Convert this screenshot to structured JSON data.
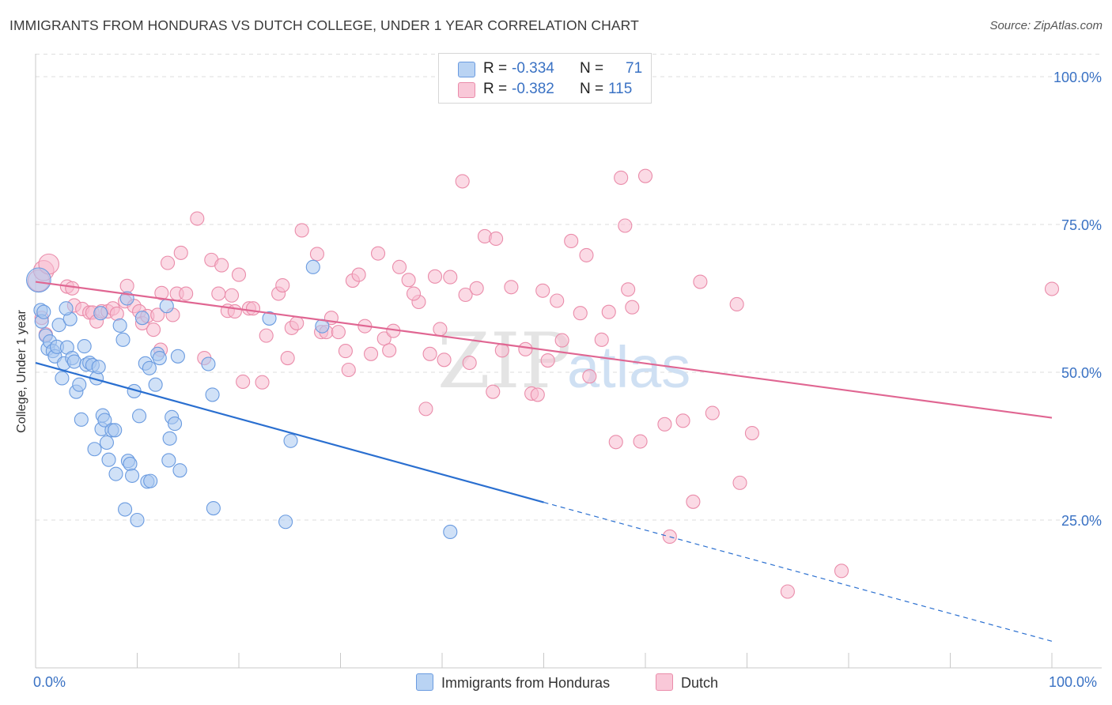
{
  "header": {
    "title": "IMMIGRANTS FROM HONDURAS VS DUTCH COLLEGE, UNDER 1 YEAR CORRELATION CHART",
    "source": "Source: ZipAtlas.com"
  },
  "legend": {
    "rows": [
      {
        "r_label": "R = ",
        "r_value": "-0.334",
        "n_label": "N = ",
        "n_value": "71"
      },
      {
        "r_label": "R = ",
        "r_value": "-0.382",
        "n_label": "N = ",
        "n_value": "115"
      }
    ]
  },
  "watermark": {
    "zip": "ZIP",
    "atlas": "atlas"
  },
  "colors": {
    "blue_fill": "#a9c8f0",
    "blue_stroke": "#6a9be0",
    "blue_line": "#2a6fd0",
    "pink_fill": "#f7bcd0",
    "pink_stroke": "#ea8caa",
    "pink_line": "#e06692",
    "tick_text": "#3a72c4",
    "grid": "#dddddd"
  },
  "chart_data": {
    "type": "scatter",
    "title": "IMMIGRANTS FROM HONDURAS VS DUTCH COLLEGE, UNDER 1 YEAR CORRELATION CHART",
    "xlabel": "",
    "ylabel": "College, Under 1 year",
    "xlim": [
      0,
      100
    ],
    "ylim": [
      0,
      106
    ],
    "x_tick_labels": [
      "0.0%",
      "100.0%"
    ],
    "y_ticks": [
      25,
      50,
      75,
      100
    ],
    "y_tick_labels": [
      "25.0%",
      "50.0%",
      "75.0%",
      "100.0%"
    ],
    "grid": true,
    "legend_position": "bottom-center",
    "series": [
      {
        "name": "Immigrants from Honduras",
        "R": -0.334,
        "N": 71,
        "trend": {
          "x0": 0,
          "y0": 51.6,
          "x1": 50,
          "y1": 28.0,
          "dashed_to_x": 100,
          "dashed_to_y": 4.5
        },
        "points": [
          [
            0.3,
            65.6,
            1.8
          ],
          [
            0.5,
            60.5,
            1
          ],
          [
            0.6,
            58.6,
            1
          ],
          [
            0.8,
            60.2,
            1
          ],
          [
            1,
            56.2,
            1
          ],
          [
            1.2,
            54,
            1
          ],
          [
            1.4,
            55.2,
            1
          ],
          [
            1.7,
            53.6,
            1
          ],
          [
            1.9,
            52.7,
            1
          ],
          [
            2.1,
            54.3,
            1
          ],
          [
            2.3,
            58,
            1
          ],
          [
            2.6,
            49,
            1
          ],
          [
            2.8,
            51.5,
            1
          ],
          [
            3.1,
            54.2,
            1
          ],
          [
            3.4,
            59,
            1
          ],
          [
            3.6,
            52.4,
            1
          ],
          [
            3.8,
            51.8,
            1
          ],
          [
            4,
            46.7,
            1
          ],
          [
            4.3,
            47.9,
            1
          ],
          [
            4.5,
            42,
            1
          ],
          [
            4.8,
            54.4,
            1
          ],
          [
            5,
            51.3,
            1
          ],
          [
            5.3,
            51.6,
            1
          ],
          [
            5.6,
            51.2,
            1
          ],
          [
            5.8,
            37,
            1
          ],
          [
            6,
            49,
            1
          ],
          [
            6.2,
            50.9,
            1
          ],
          [
            6.5,
            40.4,
            1
          ],
          [
            6.6,
            42.7,
            1
          ],
          [
            6.8,
            41.9,
            1
          ],
          [
            7,
            38.1,
            1
          ],
          [
            7.2,
            35.2,
            1
          ],
          [
            7.5,
            40.2,
            1
          ],
          [
            7.8,
            40.2,
            1
          ],
          [
            7.9,
            32.8,
            1
          ],
          [
            8.3,
            57.9,
            1
          ],
          [
            8.6,
            55.5,
            1
          ],
          [
            8.8,
            26.8,
            1
          ],
          [
            9,
            62.5,
            1
          ],
          [
            9.1,
            35,
            1
          ],
          [
            9.3,
            34.5,
            1
          ],
          [
            9.5,
            32.5,
            1
          ],
          [
            9.7,
            46.8,
            1
          ],
          [
            10,
            25,
            1
          ],
          [
            10.2,
            42.6,
            1
          ],
          [
            10.5,
            59.2,
            1
          ],
          [
            10.8,
            51.5,
            1
          ],
          [
            11,
            31.5,
            1
          ],
          [
            11.3,
            31.6,
            1
          ],
          [
            11.2,
            50.7,
            1
          ],
          [
            11.8,
            47.9,
            1
          ],
          [
            12,
            53.1,
            1
          ],
          [
            12.2,
            52.4,
            1
          ],
          [
            12.9,
            61.2,
            1
          ],
          [
            13.1,
            35.1,
            1
          ],
          [
            13.4,
            42.4,
            1
          ],
          [
            13.7,
            41.3,
            1
          ],
          [
            13.2,
            38.8,
            1
          ],
          [
            14,
            52.7,
            1
          ],
          [
            14.2,
            33.4,
            1
          ],
          [
            17,
            51.4,
            1
          ],
          [
            17.4,
            46.2,
            1
          ],
          [
            17.5,
            27,
            1
          ],
          [
            23,
            59.1,
            1
          ],
          [
            24.6,
            24.7,
            1
          ],
          [
            25.1,
            38.4,
            1
          ],
          [
            27.3,
            67.8,
            1
          ],
          [
            28.2,
            57.8,
            1
          ],
          [
            40.8,
            23,
            1
          ],
          [
            6.4,
            60,
            1
          ],
          [
            3,
            60.8,
            1
          ]
        ]
      },
      {
        "name": "Dutch",
        "R": -0.382,
        "N": 115,
        "trend": {
          "x0": 0,
          "y0": 65.3,
          "x1": 100,
          "y1": 42.3
        },
        "points": [
          [
            0.3,
            65.5,
            1.6
          ],
          [
            0.8,
            67.2,
            1.5
          ],
          [
            1.3,
            68.3,
            1.5
          ],
          [
            0.6,
            59.2,
            1
          ],
          [
            1,
            56.4,
            1
          ],
          [
            3.1,
            64.5,
            1
          ],
          [
            3.6,
            64.2,
            1
          ],
          [
            3.8,
            61.3,
            1
          ],
          [
            4.6,
            60.7,
            1
          ],
          [
            5.3,
            60.1,
            1
          ],
          [
            5.6,
            60.1,
            1
          ],
          [
            6,
            58.6,
            1
          ],
          [
            6.5,
            60.3,
            1
          ],
          [
            7.1,
            60.3,
            1
          ],
          [
            7.6,
            60.8,
            1
          ],
          [
            8,
            59.9,
            1
          ],
          [
            8.8,
            62,
            1
          ],
          [
            9,
            64.6,
            1
          ],
          [
            9.7,
            61.2,
            1
          ],
          [
            10.2,
            60.3,
            1
          ],
          [
            10.5,
            58.3,
            1
          ],
          [
            11,
            59.5,
            1
          ],
          [
            11.6,
            57.2,
            1
          ],
          [
            12,
            59.7,
            1
          ],
          [
            12.3,
            53.8,
            1
          ],
          [
            12.4,
            63.4,
            1
          ],
          [
            13,
            68.5,
            1
          ],
          [
            13.5,
            59.7,
            1
          ],
          [
            13.9,
            63.3,
            1
          ],
          [
            14.3,
            70.2,
            1
          ],
          [
            14.8,
            63.3,
            1
          ],
          [
            15.9,
            76,
            1
          ],
          [
            16.6,
            52.4,
            1
          ],
          [
            17.3,
            69,
            1
          ],
          [
            18,
            63.3,
            1
          ],
          [
            18.3,
            68.1,
            1
          ],
          [
            18.9,
            60.4,
            1
          ],
          [
            19.3,
            63,
            1
          ],
          [
            19.6,
            60.3,
            1
          ],
          [
            20,
            66.5,
            1
          ],
          [
            20.4,
            48.4,
            1
          ],
          [
            21,
            60.8,
            1
          ],
          [
            21.4,
            60.8,
            1
          ],
          [
            22.3,
            48.3,
            1
          ],
          [
            22.7,
            56.2,
            1
          ],
          [
            23.9,
            63.3,
            1
          ],
          [
            24.3,
            64.7,
            1
          ],
          [
            24.8,
            52.4,
            1
          ],
          [
            25.2,
            57.5,
            1
          ],
          [
            25.7,
            58.3,
            1
          ],
          [
            26.2,
            74,
            1
          ],
          [
            27.7,
            70,
            1
          ],
          [
            28.1,
            56.8,
            1
          ],
          [
            28.6,
            56.8,
            1
          ],
          [
            29.1,
            59.2,
            1
          ],
          [
            29.8,
            56.8,
            1
          ],
          [
            30.5,
            53.6,
            1
          ],
          [
            30.8,
            50.4,
            1
          ],
          [
            31.2,
            65.5,
            1
          ],
          [
            31.8,
            66.5,
            1
          ],
          [
            32.4,
            57.8,
            1
          ],
          [
            33,
            53.1,
            1
          ],
          [
            33.7,
            70.1,
            1
          ],
          [
            34.3,
            55.7,
            1
          ],
          [
            34.8,
            53.7,
            1
          ],
          [
            35.2,
            57,
            1
          ],
          [
            35.8,
            67.8,
            1
          ],
          [
            36.7,
            65.6,
            1
          ],
          [
            37.7,
            61.9,
            1
          ],
          [
            38.4,
            43.8,
            1
          ],
          [
            38.8,
            53.1,
            1
          ],
          [
            39.3,
            66.2,
            1
          ],
          [
            39.8,
            57.3,
            1
          ],
          [
            40.2,
            52.1,
            1
          ],
          [
            40.8,
            66.1,
            1
          ],
          [
            42,
            82.3,
            1
          ],
          [
            42.3,
            63.1,
            1
          ],
          [
            42.7,
            51.6,
            1
          ],
          [
            43.4,
            64.2,
            1
          ],
          [
            44.2,
            73,
            1
          ],
          [
            45,
            46.7,
            1
          ],
          [
            45.3,
            72.6,
            1
          ],
          [
            45.9,
            53.7,
            1
          ],
          [
            46.8,
            64.4,
            1
          ],
          [
            48.2,
            53.9,
            1
          ],
          [
            48.8,
            46.4,
            1
          ],
          [
            49.4,
            46.2,
            1
          ],
          [
            49.9,
            63.8,
            1
          ],
          [
            50.4,
            52,
            1
          ],
          [
            51.3,
            62.1,
            1
          ],
          [
            51.8,
            55.4,
            1
          ],
          [
            52.7,
            72.2,
            1
          ],
          [
            53.6,
            60,
            1
          ],
          [
            54.2,
            69.8,
            1
          ],
          [
            54.5,
            49.3,
            1
          ],
          [
            55.7,
            55.5,
            1
          ],
          [
            56.4,
            60.2,
            1
          ],
          [
            57.1,
            38.2,
            1
          ],
          [
            57.6,
            82.9,
            1
          ],
          [
            58,
            74.8,
            1
          ],
          [
            58.3,
            64,
            1
          ],
          [
            58.7,
            61,
            1
          ],
          [
            59.5,
            38.3,
            1
          ],
          [
            60,
            83.2,
            1
          ],
          [
            61.9,
            41.2,
            1
          ],
          [
            62.4,
            22.2,
            1
          ],
          [
            63.7,
            41.8,
            1
          ],
          [
            64.7,
            28.1,
            1
          ],
          [
            65.4,
            65.3,
            1
          ],
          [
            66.6,
            43.1,
            1
          ],
          [
            69,
            61.5,
            1
          ],
          [
            69.3,
            31.3,
            1
          ],
          [
            70.5,
            39.7,
            1
          ],
          [
            74,
            12.9,
            1
          ],
          [
            79.3,
            16.4,
            1
          ],
          [
            100,
            64.1,
            1
          ],
          [
            37.2,
            63.3,
            1
          ]
        ]
      }
    ]
  },
  "bottom_legend": {
    "items": [
      {
        "label": "Immigrants from Honduras"
      },
      {
        "label": "Dutch"
      }
    ]
  }
}
